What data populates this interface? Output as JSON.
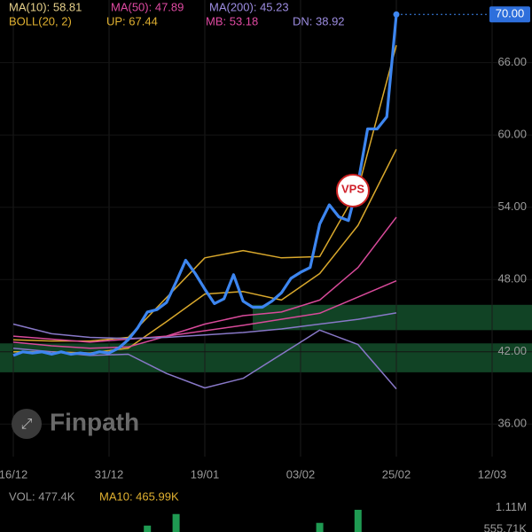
{
  "chart_data": [
    {
      "type": "line",
      "legend_rows": [
        [
          {
            "text": "MA(10): 58.81",
            "color": "#e6d08a"
          },
          {
            "text": "MA(50): 47.89",
            "color": "#e04aa2"
          },
          {
            "text": "MA(200): 45.23",
            "color": "#9c8ce0"
          }
        ],
        [
          {
            "text": "BOLL(20, 2)",
            "color": "#e0b030"
          },
          {
            "text": "UP: 67.44",
            "color": "#e0b030"
          },
          {
            "text": "MB: 53.18",
            "color": "#e04aa2"
          },
          {
            "text": "DN: 38.92",
            "color": "#9c8ce0"
          }
        ]
      ],
      "watermark": "Finpath",
      "badge": "VPS",
      "xlim": [
        -1.389,
        54.167
      ],
      "xticks": [
        {
          "value": 0,
          "label": "16/12"
        },
        {
          "value": 10,
          "label": "31/12"
        },
        {
          "value": 20,
          "label": "19/01"
        },
        {
          "value": 30,
          "label": "03/02"
        },
        {
          "value": 40,
          "label": "25/02"
        },
        {
          "value": 50,
          "label": "12/03"
        }
      ],
      "ylim": [
        33.3,
        71.2
      ],
      "yticks": [
        {
          "value": 36,
          "label": "36.00"
        },
        {
          "value": 42,
          "label": "42.00"
        },
        {
          "value": 48,
          "label": "48.00"
        },
        {
          "value": 54,
          "label": "54.00"
        },
        {
          "value": 60,
          "label": "60.00"
        },
        {
          "value": 66,
          "label": "66.00"
        }
      ],
      "last_price": {
        "value": 70,
        "label": "70.00"
      },
      "zones": [
        {
          "x_start": 25,
          "from": 43.8,
          "to": 45.9
        },
        {
          "x_start": -1.389,
          "from": 40.3,
          "to": 42.7
        }
      ],
      "grid": true,
      "series": [
        {
          "name": "Price",
          "color": "#3d86f0",
          "x": [
            0,
            1,
            2,
            3,
            4,
            5,
            6,
            7,
            8,
            9,
            10,
            11,
            12,
            13,
            14,
            15,
            16,
            17,
            18,
            19,
            20,
            21,
            22,
            23,
            24,
            25,
            26,
            27,
            28,
            29,
            30,
            31,
            32,
            33,
            34,
            35,
            36,
            37,
            38,
            39,
            40
          ],
          "values": [
            41.7,
            42.0,
            41.9,
            42.0,
            41.8,
            42.0,
            41.8,
            41.9,
            41.8,
            42.0,
            41.9,
            42.3,
            43.0,
            44.0,
            45.3,
            45.5,
            46.1,
            47.8,
            49.6,
            48.5,
            47.2,
            46.0,
            46.4,
            48.4,
            46.2,
            45.7,
            45.7,
            46.2,
            46.9,
            48.1,
            48.6,
            49.0,
            52.6,
            54.2,
            53.2,
            52.9,
            56.0,
            60.5,
            60.5,
            61.5,
            70.0
          ]
        },
        {
          "name": "UP",
          "color": "#d9a82c",
          "x": [
            0,
            4,
            8,
            12,
            16,
            20,
            24,
            28,
            32,
            36,
            40
          ],
          "values": [
            43.0,
            42.9,
            42.9,
            43.2,
            46.5,
            49.8,
            50.4,
            49.8,
            49.9,
            55.5,
            67.44
          ]
        },
        {
          "name": "MA(10)",
          "color": "#d9a82c",
          "x": [
            0,
            4,
            8,
            12,
            16,
            20,
            24,
            28,
            32,
            36,
            40
          ],
          "values": [
            42.0,
            42.0,
            41.9,
            42.3,
            44.5,
            46.8,
            47.0,
            46.3,
            48.5,
            52.5,
            58.81
          ]
        },
        {
          "name": "MB",
          "color": "#d84a9a",
          "x": [
            0,
            4,
            8,
            12,
            16,
            20,
            24,
            28,
            32,
            36,
            40
          ],
          "values": [
            42.8,
            42.5,
            42.3,
            42.4,
            43.3,
            44.3,
            45.0,
            45.3,
            46.3,
            49.0,
            53.18
          ]
        },
        {
          "name": "MA(50)",
          "color": "#d84a9a",
          "x": [
            0,
            8,
            16,
            24,
            32,
            40
          ],
          "values": [
            43.3,
            42.8,
            43.3,
            44.2,
            45.2,
            47.89
          ]
        },
        {
          "name": "MA(200)",
          "color": "#8878c8",
          "x": [
            0,
            4,
            8,
            12,
            16,
            20,
            24,
            28,
            32,
            36,
            40
          ],
          "values": [
            44.3,
            43.5,
            43.2,
            43.1,
            43.2,
            43.4,
            43.6,
            43.9,
            44.3,
            44.7,
            45.23
          ]
        },
        {
          "name": "DN",
          "color": "#8878c8",
          "x": [
            0,
            4,
            8,
            12,
            16,
            20,
            24,
            28,
            32,
            36,
            40
          ],
          "values": [
            42.3,
            42.0,
            41.7,
            41.8,
            40.2,
            39.0,
            39.8,
            41.8,
            43.8,
            42.6,
            38.92
          ]
        }
      ]
    },
    {
      "type": "bar",
      "legend": [
        {
          "text": "VOL: 477.4K",
          "color": "#9a9a9a"
        },
        {
          "text": "MA10: 465.99K",
          "color": "#e0b030"
        }
      ],
      "color": "#1f9a52",
      "x": [
        14,
        17,
        32,
        36
      ],
      "values": [
        650000,
        950000,
        720000,
        1060000
      ],
      "ylim": [
        0,
        1220000
      ],
      "yticks": [
        {
          "value": 1110000,
          "label": "1.11M"
        },
        {
          "value": 555710,
          "label": "555.71K"
        }
      ]
    }
  ]
}
